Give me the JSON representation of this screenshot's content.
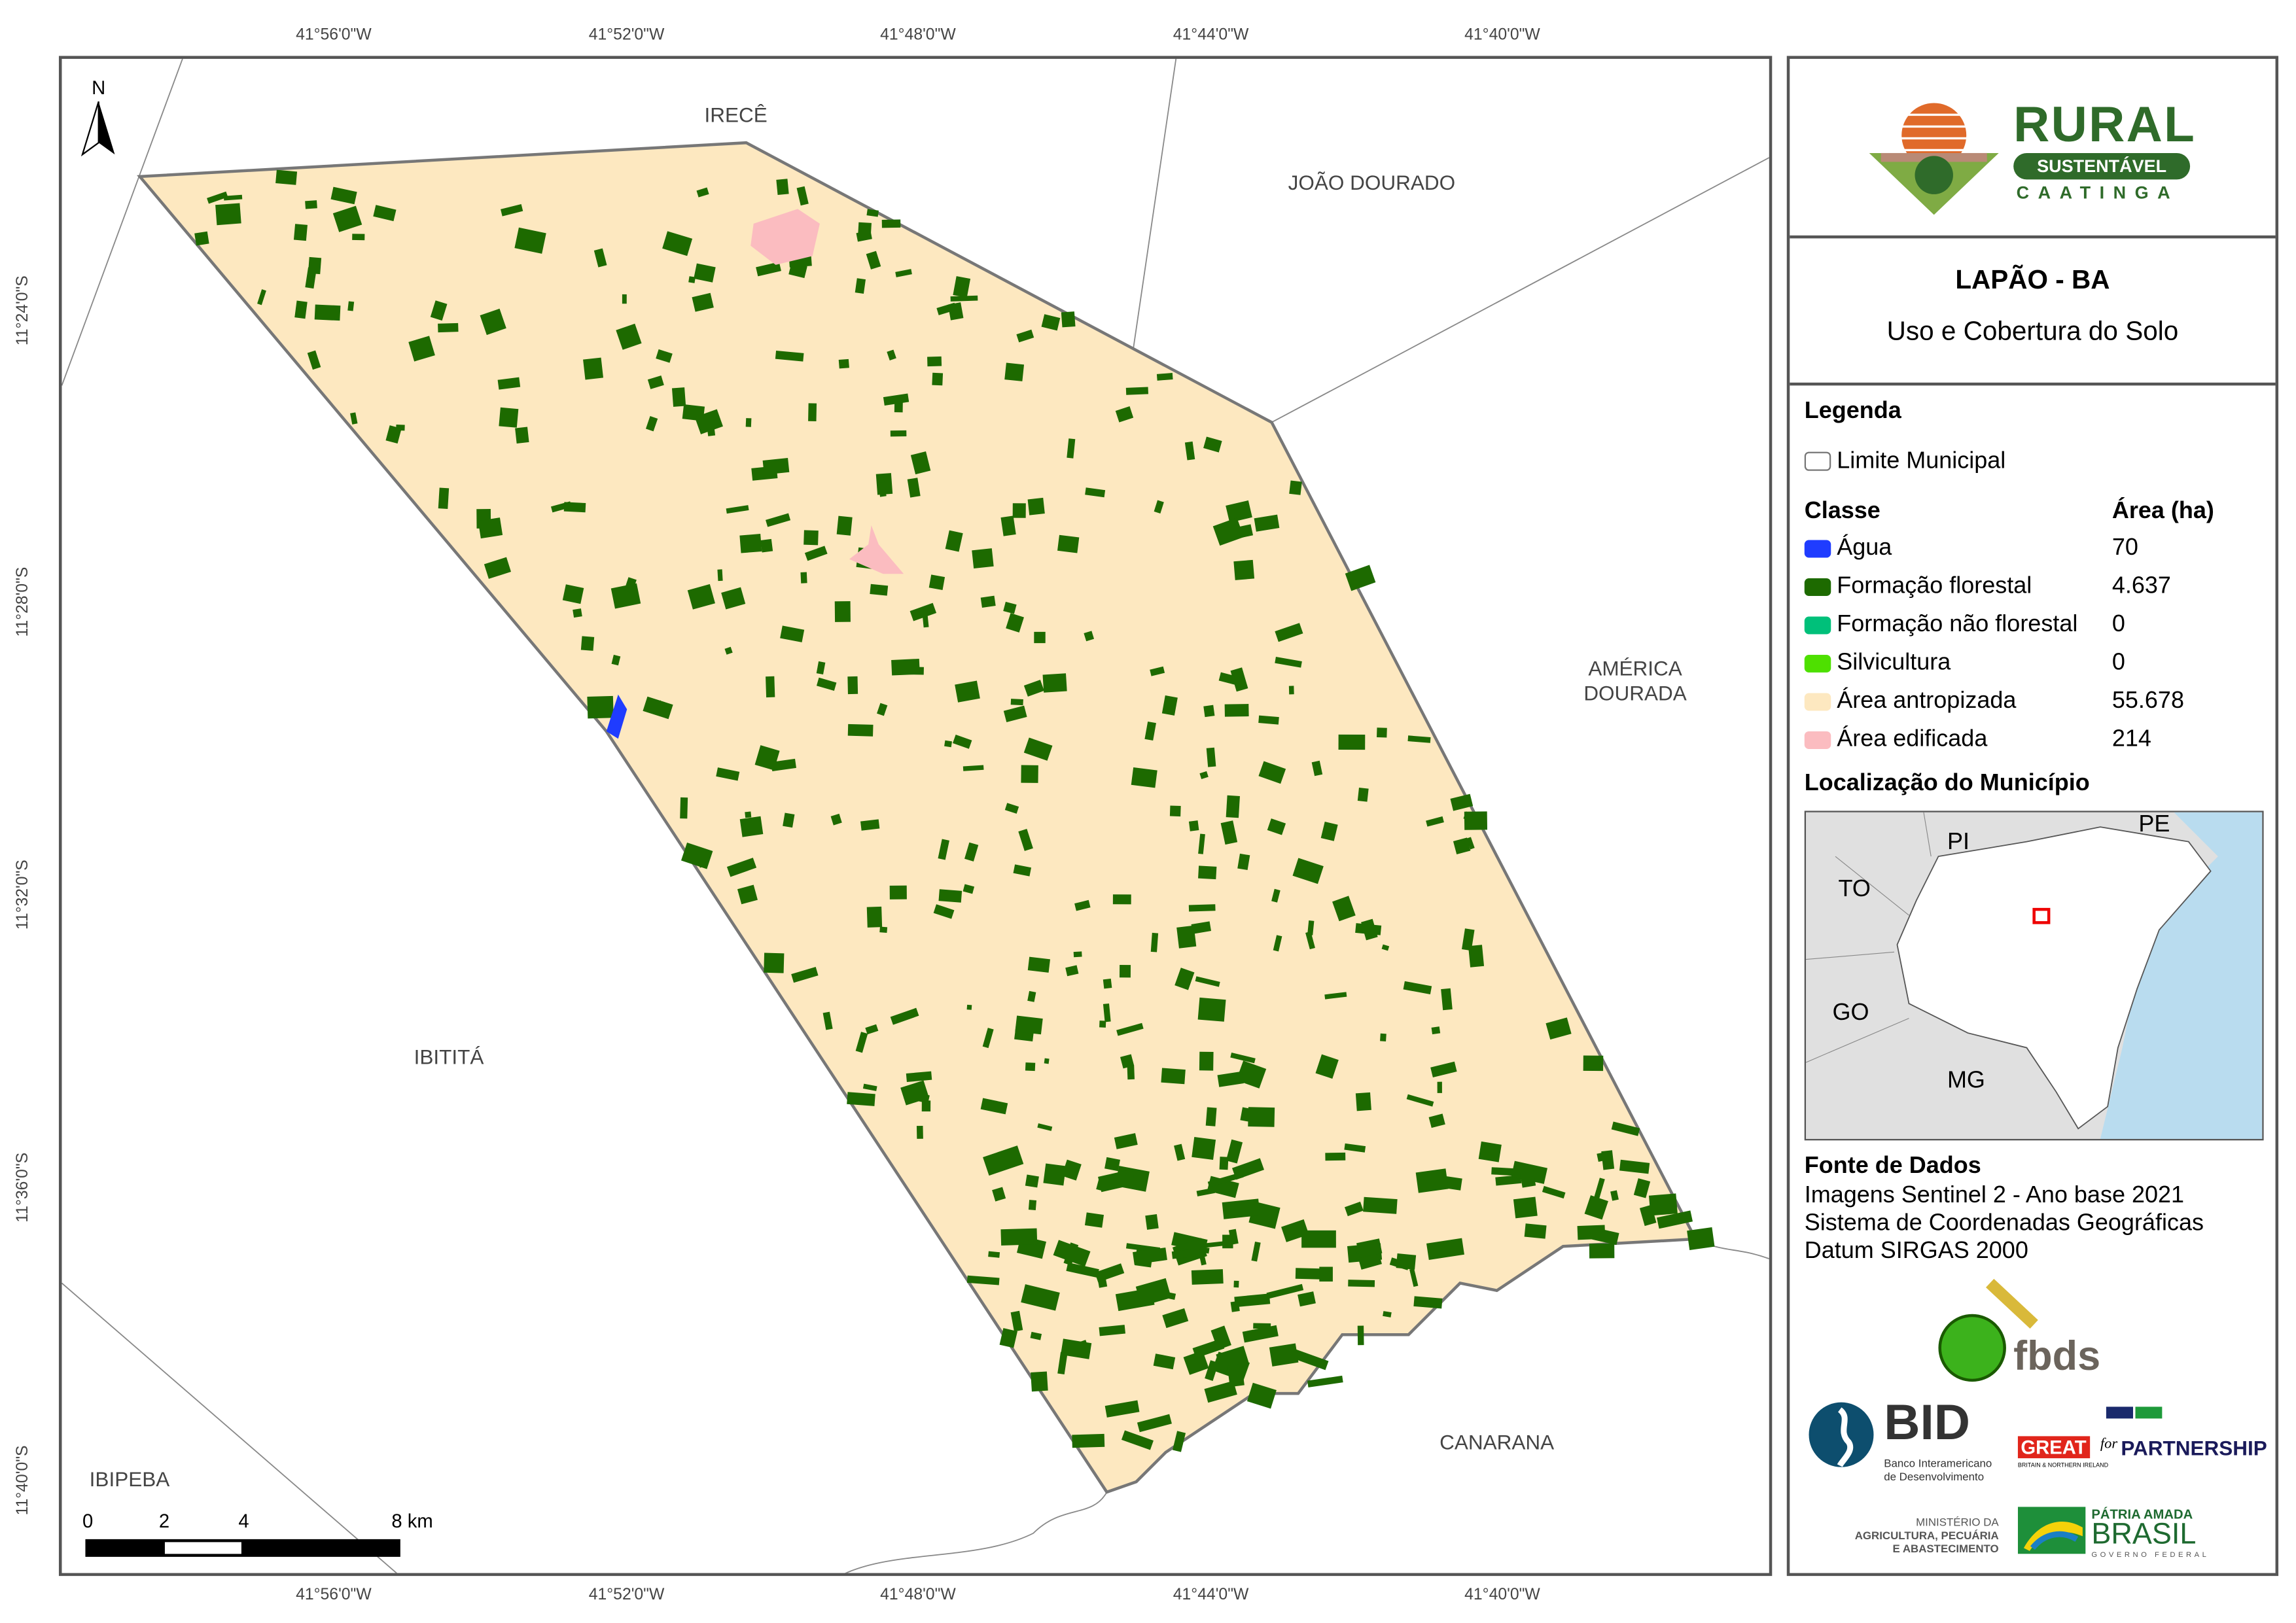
{
  "coords": {
    "longitude_ticks": [
      "41°56'0\"W",
      "41°52'0\"W",
      "41°48'0\"W",
      "41°44'0\"W",
      "41°40'0\"W"
    ],
    "latitude_ticks": [
      "11°24'0\"S",
      "11°28'0\"S",
      "11°32'0\"S",
      "11°36'0\"S",
      "11°40'0\"S"
    ]
  },
  "map": {
    "north_label": "N",
    "neighbors": [
      "IRECÊ",
      "JOÃO DOURADO",
      "AMÉRICA DOURADA",
      "IBITITÁ",
      "CANARANA",
      "IBIPEBA"
    ],
    "scalebar": {
      "labels": [
        "0",
        "2",
        "4",
        "8 km"
      ]
    },
    "colors": {
      "agua": "#1f3cff",
      "florestal": "#1d6a00",
      "nao_florestal": "#00c07a",
      "silvicultura": "#4ee000",
      "antropizada": "#fde8c0",
      "edificada": "#fbbcc0",
      "limite": "#777777"
    }
  },
  "panel": {
    "logo": {
      "rural": "RURAL",
      "sustentavel": "SUSTENTÁVEL",
      "caatinga": "CAATINGA"
    },
    "title": "LAPÃO - BA",
    "subtitle": "Uso e Cobertura do Solo",
    "legend_title": "Legenda",
    "limite": "Limite Municipal",
    "class_header": "Classe",
    "area_header": "Área (ha)",
    "classes": [
      {
        "label": "Água",
        "area": "70",
        "color": "#1f3cff"
      },
      {
        "label": "Formação florestal",
        "area": "4.637",
        "color": "#1d6a00"
      },
      {
        "label": "Formação não florestal",
        "area": "0",
        "color": "#00c07a"
      },
      {
        "label": "Silvicultura",
        "area": "0",
        "color": "#4ee000"
      },
      {
        "label": "Área antropizada",
        "area": "55.678",
        "color": "#fde8c0"
      },
      {
        "label": "Área edificada",
        "area": "214",
        "color": "#fbbcc0"
      }
    ],
    "location_title": "Localização do Município",
    "location_states": [
      "PI",
      "PE",
      "TO",
      "GO",
      "MG"
    ],
    "source_title": "Fonte de Dados",
    "source_lines": [
      "Imagens Sentinel 2 - Ano base 2021",
      "Sistema de Coordenadas Geográficas",
      "Datum SIRGAS 2000"
    ],
    "logos": {
      "fbds": "fbds",
      "bid": "BID",
      "bid_sub1": "Banco Interamericano",
      "bid_sub2": "de Desenvolvimento",
      "great": "GREAT",
      "great_for": "for",
      "great_partnership": "PARTNERSHIP",
      "great_sub": "BRITAIN & NORTHERN IRELAND",
      "min1": "MINISTÉRIO DA",
      "min2": "AGRICULTURA, PECUÁRIA",
      "min3": "E ABASTECIMENTO",
      "patria": "PÁTRIA AMADA",
      "brasil": "BRASIL",
      "governo": "GOVERNO FEDERAL"
    }
  }
}
